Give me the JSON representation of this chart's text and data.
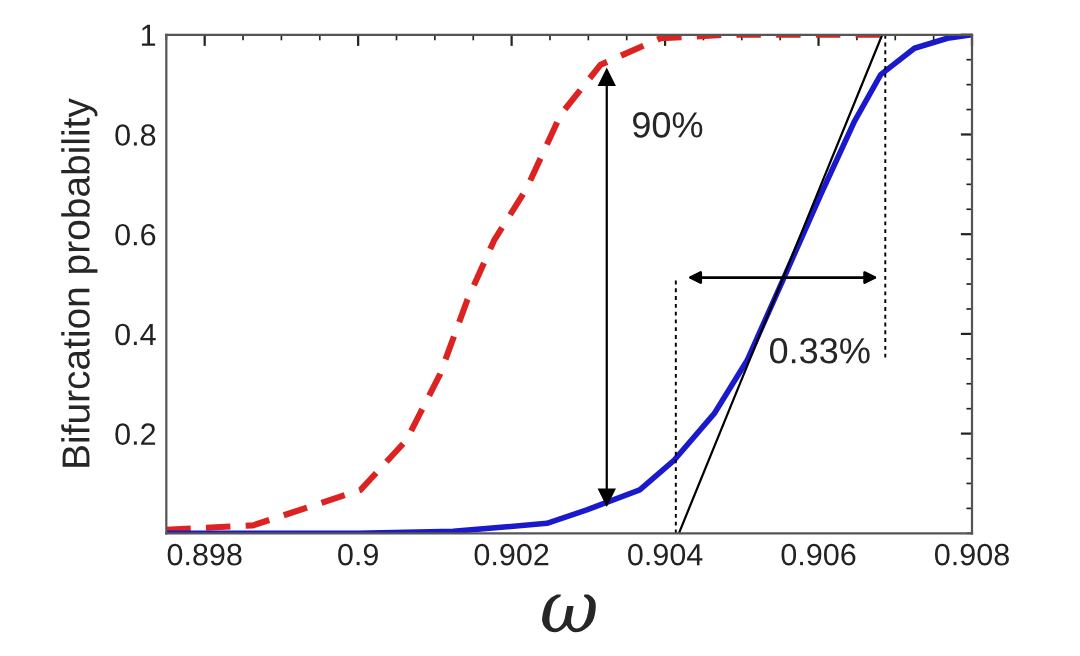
{
  "chart_data": {
    "type": "line",
    "xlabel": "ω",
    "ylabel": "Bifurcation probability",
    "xlim": [
      0.8975,
      0.908
    ],
    "xticks": [
      0.898,
      0.9,
      0.902,
      0.904,
      0.906,
      0.908
    ],
    "ylim": [
      0,
      1
    ],
    "yticks": [
      0.2,
      0.4,
      0.6,
      0.8,
      1
    ],
    "grid": false,
    "series": [
      {
        "color": "#dd2222",
        "line_style": "dashed",
        "x": [
          0.8975,
          0.89863,
          0.8995,
          0.90003,
          0.90063,
          0.90107,
          0.90142,
          0.90177,
          0.9022,
          0.90264,
          0.90316,
          0.90394,
          0.9048,
          0.90686
        ],
        "values": [
          0.007,
          0.016,
          0.06,
          0.087,
          0.187,
          0.32,
          0.467,
          0.587,
          0.693,
          0.84,
          0.94,
          0.993,
          1,
          1
        ]
      },
      {
        "color": "#1a1acc",
        "line_style": "solid",
        "x": [
          0.8975,
          0.9,
          0.90124,
          0.90194,
          0.90246,
          0.90298,
          0.90367,
          0.90412,
          0.90464,
          0.90507,
          0.90555,
          0.90603,
          0.90647,
          0.90681,
          0.90725,
          0.90768,
          0.908
        ],
        "values": [
          0,
          0,
          0.004,
          0.013,
          0.02,
          0.047,
          0.087,
          0.147,
          0.24,
          0.347,
          0.513,
          0.68,
          0.827,
          0.92,
          0.973,
          0.993,
          1
        ]
      },
      {
        "color": "#000000",
        "line_style": "solid",
        "x": [
          0.90418,
          0.90683
        ],
        "values": [
          0,
          1
        ]
      },
      {
        "color": "#000000",
        "line_style": "dotted",
        "x": [
          0.90414,
          0.90414
        ],
        "values": [
          0,
          0.513
        ]
      },
      {
        "color": "#000000",
        "line_style": "dotted",
        "x": [
          0.90687,
          0.90687
        ],
        "values": [
          1,
          0.347
        ]
      },
      {
        "color": "#000000",
        "line_style": "solid",
        "marker": "triangle",
        "x": [
          0.90324,
          0.90324
        ],
        "values": [
          0.914,
          0.073
        ]
      }
    ],
    "annotations": [
      "90%",
      "0.33%"
    ]
  }
}
